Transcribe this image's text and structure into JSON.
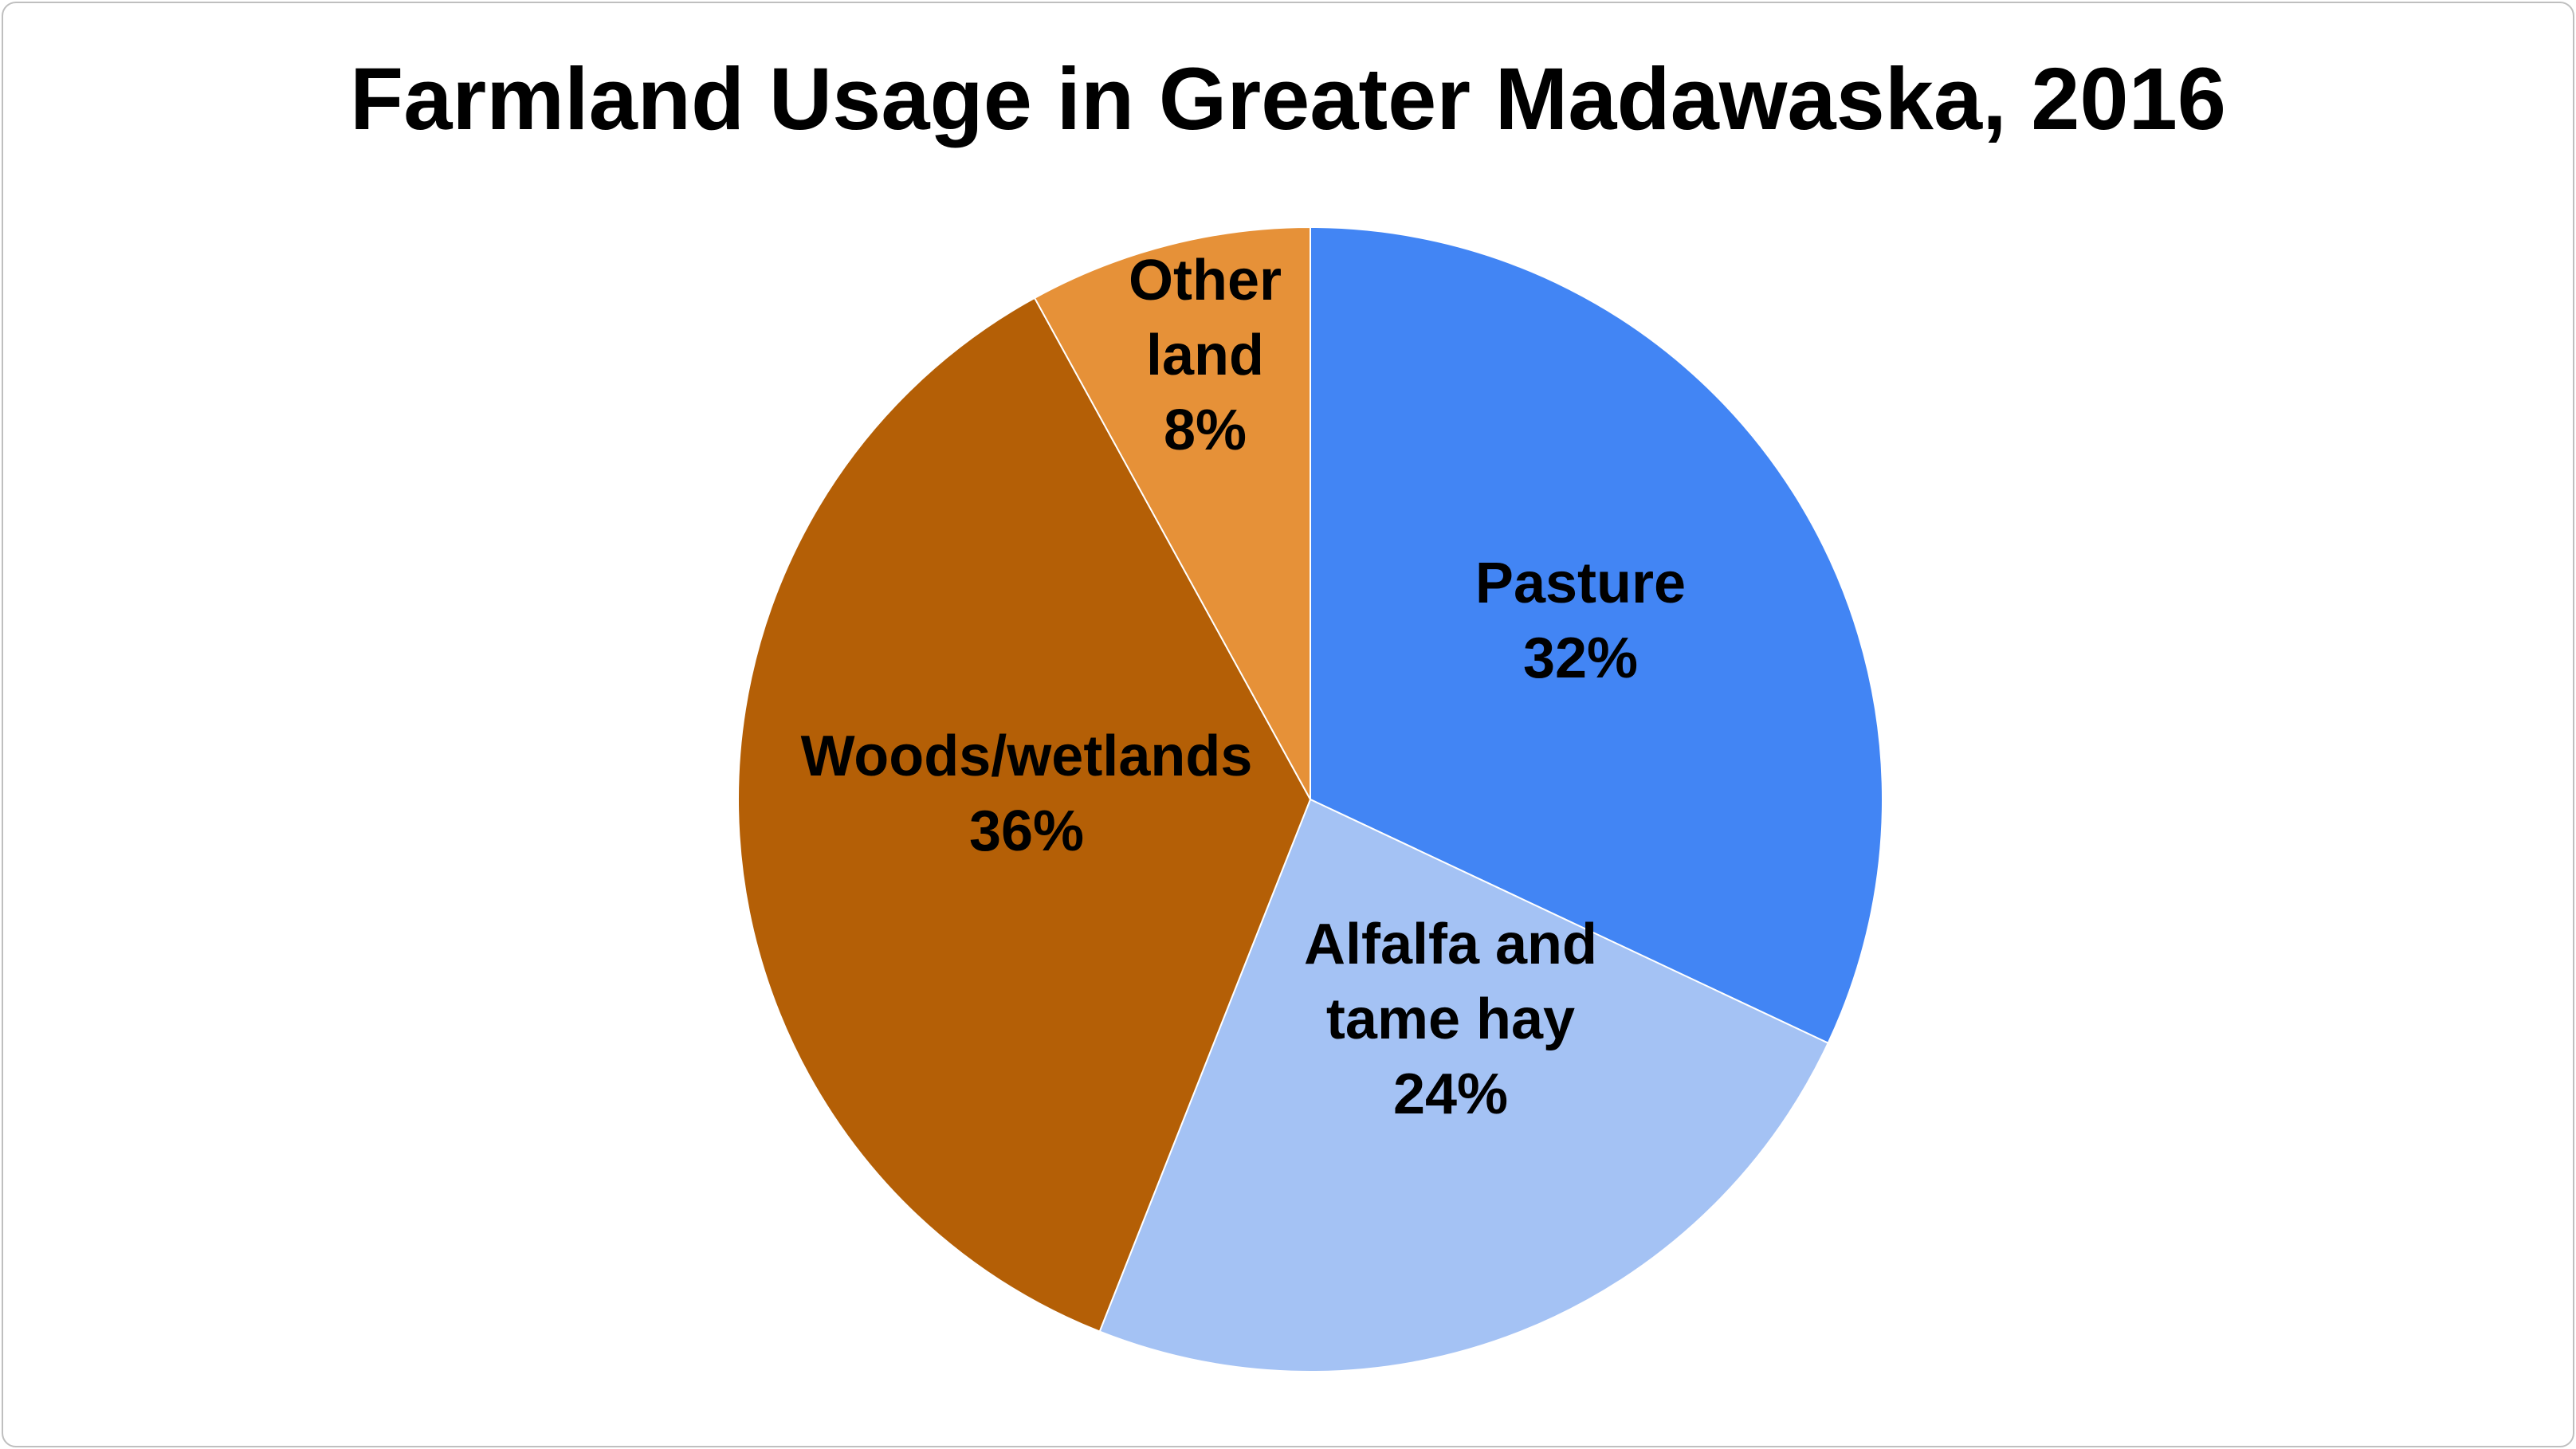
{
  "chart_data": {
    "type": "pie",
    "title": "Farmland Usage in Greater Madawaska, 2016",
    "start_angle_deg": 0,
    "direction": "clockwise",
    "slices": [
      {
        "name": "Pasture",
        "label_lines": [
          "Pasture",
          "32%"
        ],
        "value": 32,
        "color": "#4285F4"
      },
      {
        "name": "Alfalfa and tame hay",
        "label_lines": [
          "Alfalfa and",
          "tame hay",
          "24%"
        ],
        "value": 24,
        "color": "#A4C2F4"
      },
      {
        "name": "Woods/wetlands",
        "label_lines": [
          "Woods/wetlands",
          "36%"
        ],
        "value": 36,
        "color": "#B45F06"
      },
      {
        "name": "Other land",
        "label_lines": [
          "Other",
          "land",
          "8%"
        ],
        "value": 8,
        "color": "#E69138"
      }
    ],
    "legend": "none",
    "data_labels": "inside"
  }
}
